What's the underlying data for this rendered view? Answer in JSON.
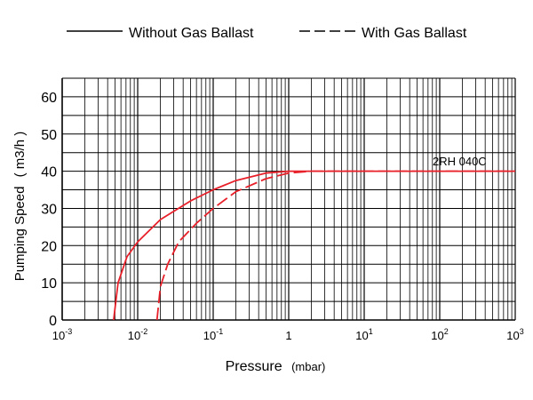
{
  "chart_data": {
    "type": "line",
    "xscale": "log",
    "xlim": [
      0.001,
      1000
    ],
    "ylim": [
      0,
      65
    ],
    "x_ticks": [
      {
        "base": "10",
        "exp": "-3"
      },
      {
        "base": "10",
        "exp": "-2"
      },
      {
        "base": "10",
        "exp": "-1"
      },
      {
        "base": "1",
        "exp": ""
      },
      {
        "base": "10",
        "exp": "1"
      },
      {
        "base": "10",
        "exp": "2"
      },
      {
        "base": "10",
        "exp": "3"
      }
    ],
    "y_ticks": [
      "0",
      "10",
      "20",
      "30",
      "40",
      "50",
      "60"
    ],
    "xlabel": {
      "main": "Pressure",
      "unit": "(mbar)"
    },
    "ylabel": {
      "main": "Pumping Speed",
      "unit": "( m3/h )"
    },
    "legend_position": "top",
    "grid": true,
    "series": [
      {
        "name": "Without Gas Ballast",
        "style": "solid",
        "color": "#e8202a",
        "points": [
          [
            0.0048,
            0
          ],
          [
            0.0055,
            10
          ],
          [
            0.0072,
            17
          ],
          [
            0.01,
            21
          ],
          [
            0.02,
            27
          ],
          [
            0.05,
            32
          ],
          [
            0.1,
            35
          ],
          [
            0.2,
            37.5
          ],
          [
            0.5,
            39.5
          ],
          [
            1,
            40
          ],
          [
            2,
            40
          ],
          [
            1000,
            40
          ]
        ]
      },
      {
        "name": "With Gas Ballast",
        "style": "dashed",
        "color": "#e8202a",
        "points": [
          [
            0.018,
            0
          ],
          [
            0.02,
            9
          ],
          [
            0.025,
            15
          ],
          [
            0.035,
            21
          ],
          [
            0.06,
            26
          ],
          [
            0.1,
            30
          ],
          [
            0.2,
            34.5
          ],
          [
            0.5,
            38
          ],
          [
            1,
            39.5
          ],
          [
            2,
            40
          ],
          [
            1000,
            40
          ]
        ]
      }
    ],
    "annotations": [
      {
        "text": "2RH 040C"
      }
    ]
  }
}
